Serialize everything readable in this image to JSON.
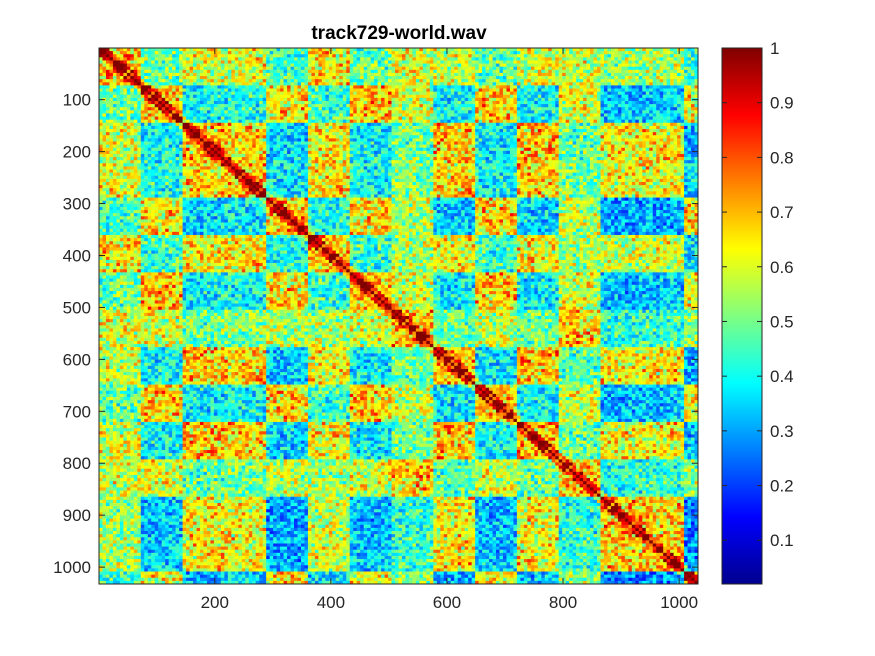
{
  "chart_data": {
    "type": "heatmap",
    "title": "track729-world.wav",
    "xlabel": "",
    "ylabel": "",
    "n": 1032,
    "x_ticks": [
      200,
      400,
      600,
      800,
      1000
    ],
    "y_ticks": [
      100,
      200,
      300,
      400,
      500,
      600,
      700,
      800,
      900,
      1000
    ],
    "y_direction": "reversed",
    "colorbar": {
      "colormap": "jet",
      "range": [
        0.02,
        1.0
      ],
      "ticks": [
        0.1,
        0.2,
        0.3,
        0.4,
        0.5,
        0.6,
        0.7,
        0.8,
        0.9,
        1
      ]
    },
    "grid": false,
    "description_of_values": "self-similarity matrix, symmetric, diagonal = 1"
  }
}
